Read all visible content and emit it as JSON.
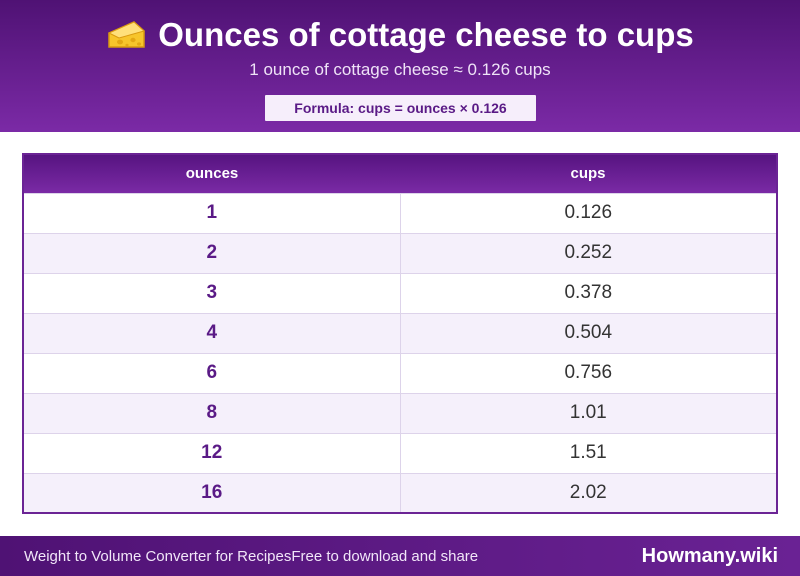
{
  "header": {
    "icon": "cheese-icon",
    "title": "Ounces of cottage cheese to cups",
    "subtitle": "1 ounce of cottage cheese ≈ 0.126 cups",
    "formula": "Formula: cups = ounces × 0.126"
  },
  "table": {
    "columns": [
      "ounces",
      "cups"
    ],
    "rows": [
      [
        "1",
        "0.126"
      ],
      [
        "2",
        "0.252"
      ],
      [
        "3",
        "0.378"
      ],
      [
        "4",
        "0.504"
      ],
      [
        "6",
        "0.756"
      ],
      [
        "8",
        "1.01"
      ],
      [
        "12",
        "1.51"
      ],
      [
        "16",
        "2.02"
      ]
    ]
  },
  "footer": {
    "left_a": "Weight to Volume Converter for Recipes",
    "left_b": "Free to download and share",
    "brand": "Howmany.wiki"
  },
  "colors": {
    "header_bg": "#5e1a8a",
    "accent": "#5a1a86",
    "row_alt": "#f5f0fb"
  }
}
